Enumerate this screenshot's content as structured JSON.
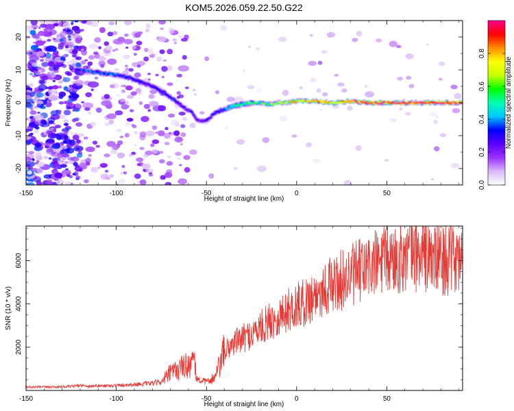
{
  "title": "KOM5.2026.059.22.50.G22",
  "colors": {
    "snr_line": "#e83a35",
    "frame": "#000000",
    "background": "#ffffff"
  },
  "chart_data": [
    {
      "type": "heatmap",
      "title": "KOM5.2026.059.22.50.G22",
      "xlabel": "Height of straight line (km)",
      "ylabel": "Frequency (Hz)",
      "xlim": [
        -150,
        92
      ],
      "ylim": [
        -25,
        25
      ],
      "xticks": [
        -150,
        -100,
        -50,
        0,
        50
      ],
      "yticks": [
        -20,
        -10,
        0,
        10,
        20
      ],
      "colorbar": {
        "label": "Normalized spectral amplitude",
        "range": [
          0,
          1
        ],
        "ticks": [
          "0.0",
          "0.2",
          "0.4",
          "0.6",
          "0.8"
        ],
        "tick_values": [
          0.0,
          0.2,
          0.4,
          0.6,
          0.8
        ],
        "colormap": [
          "#ffffff",
          "#d9b8f7",
          "#9b30ff",
          "#5a00ff",
          "#0000ff",
          "#00c8ff",
          "#00ffb0",
          "#00ff00",
          "#c8ff00",
          "#ffff00",
          "#ff8c00",
          "#ff0000",
          "#ff0090"
        ]
      },
      "ridge": {
        "x": [
          -122,
          -115,
          -108,
          -100,
          -92,
          -85,
          -78,
          -72,
          -67,
          -62,
          -58,
          -55,
          -50,
          -45,
          -40,
          -35,
          -30,
          -25,
          -20,
          -15,
          -10,
          -5,
          0,
          10,
          20,
          30,
          40,
          50,
          60,
          70,
          80,
          92
        ],
        "y": [
          10,
          9.5,
          9,
          8.5,
          7.5,
          6,
          4.5,
          2.5,
          0.5,
          -1.5,
          -3,
          -5.5,
          -5.5,
          -3,
          -2,
          -1,
          -0.5,
          0,
          0,
          -0.5,
          0,
          0,
          0.5,
          0.5,
          0,
          0.5,
          0,
          0,
          0,
          0,
          0,
          0
        ],
        "amplitude": [
          0.35,
          0.35,
          0.35,
          0.35,
          0.3,
          0.3,
          0.3,
          0.3,
          0.3,
          0.25,
          0.25,
          0.25,
          0.25,
          0.3,
          0.35,
          0.45,
          0.5,
          0.55,
          0.55,
          0.6,
          0.65,
          0.7,
          0.75,
          0.8,
          0.82,
          0.85,
          0.9,
          0.95,
          0.95,
          0.95,
          0.95,
          0.95
        ]
      }
    },
    {
      "type": "line",
      "xlabel": "Height of straight line (km)",
      "ylabel": "SNR (10 * v/v)",
      "xlim": [
        -150,
        92
      ],
      "ylim": [
        0,
        7600
      ],
      "xticks": [
        -150,
        -100,
        -50,
        0,
        50
      ],
      "yticks": [
        2000,
        4000,
        6000
      ],
      "series": [
        {
          "name": "SNR",
          "x": [
            -150,
            -140,
            -130,
            -125,
            -120,
            -115,
            -110,
            -100,
            -90,
            -80,
            -75,
            -70,
            -65,
            -60,
            -57,
            -55,
            -50,
            -45,
            -40,
            -35,
            -30,
            -25,
            -20,
            -15,
            -10,
            -5,
            0,
            5,
            10,
            15,
            20,
            25,
            30,
            35,
            40,
            45,
            50,
            55,
            60,
            65,
            70,
            75,
            80,
            85,
            90,
            92
          ],
          "y": [
            150,
            160,
            170,
            180,
            240,
            200,
            210,
            230,
            280,
            330,
            400,
            800,
            1000,
            1200,
            1300,
            500,
            400,
            600,
            1800,
            2200,
            2400,
            2600,
            2900,
            3200,
            3400,
            3700,
            3900,
            4100,
            4400,
            4700,
            4900,
            5100,
            5300,
            5500,
            5700,
            5900,
            6000,
            6100,
            6200,
            6300,
            6200,
            6100,
            6100,
            6000,
            6000,
            6000
          ]
        }
      ]
    }
  ]
}
